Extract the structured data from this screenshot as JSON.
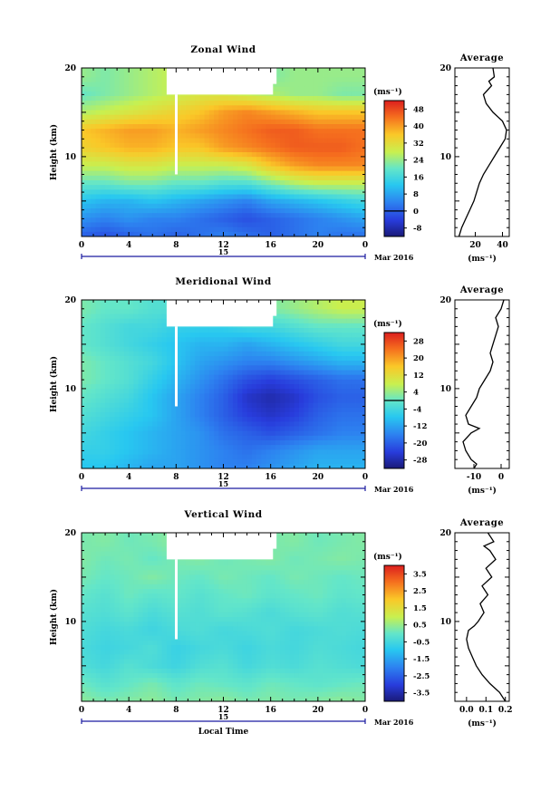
{
  "chart_data": [
    {
      "type": "heatmap",
      "title": "Zonal Wind",
      "ylabel": "Height (km)",
      "x_ticks": [
        "0",
        "4",
        "8",
        "12",
        "16",
        "20",
        "0"
      ],
      "y_ticks": [
        "20",
        "10"
      ],
      "xlim": [
        0,
        24
      ],
      "ylim": [
        1,
        20
      ],
      "date_label": "15",
      "date_suffix": "Mar 2016",
      "colorbar": {
        "unit": "(ms⁻¹)",
        "ticks": [
          "48",
          "40",
          "32",
          "24",
          "16",
          "8",
          "0",
          "-8"
        ],
        "range": [
          -12,
          52
        ],
        "zero_line": 0
      },
      "field": {
        "x": [
          0,
          2,
          4,
          6,
          8,
          10,
          12,
          14,
          16,
          18,
          20,
          22,
          24
        ],
        "y": [
          1,
          3,
          5,
          7,
          9,
          11,
          13,
          15,
          17,
          19
        ],
        "z": [
          [
            0,
            -2,
            0,
            2,
            0,
            2,
            4,
            2,
            0,
            2,
            4,
            2,
            2
          ],
          [
            6,
            4,
            6,
            4,
            4,
            2,
            0,
            -2,
            0,
            2,
            4,
            6,
            8
          ],
          [
            12,
            10,
            10,
            12,
            10,
            8,
            6,
            4,
            8,
            10,
            12,
            14,
            16
          ],
          [
            20,
            20,
            22,
            22,
            20,
            20,
            18,
            18,
            22,
            26,
            28,
            28,
            28
          ],
          [
            28,
            28,
            30,
            30,
            28,
            28,
            28,
            30,
            36,
            40,
            42,
            42,
            42
          ],
          [
            34,
            36,
            38,
            38,
            36,
            36,
            40,
            42,
            44,
            46,
            46,
            46,
            44
          ],
          [
            36,
            38,
            40,
            40,
            38,
            40,
            42,
            44,
            46,
            46,
            44,
            44,
            44
          ],
          [
            26,
            28,
            30,
            32,
            34,
            36,
            40,
            42,
            40,
            38,
            36,
            36,
            36
          ],
          [
            20,
            22,
            24,
            26,
            28,
            30,
            30,
            28,
            26,
            24,
            24,
            22,
            22
          ],
          [
            24,
            22,
            24,
            26,
            28,
            26,
            24,
            22,
            22,
            24,
            24,
            24,
            24
          ]
        ]
      },
      "average": {
        "title": "Average",
        "xlabel": "(ms⁻¹)",
        "x_ticks": [
          "20",
          "40"
        ],
        "xlim": [
          5,
          45
        ],
        "heights": [
          1,
          2,
          3,
          4,
          5,
          6,
          7,
          8,
          9,
          10,
          11,
          12,
          13,
          14,
          15,
          16,
          17,
          17.5,
          18,
          18.5,
          19,
          20
        ],
        "values": [
          8,
          10,
          13,
          16,
          19,
          21,
          23,
          26,
          30,
          34,
          38,
          42,
          43,
          40,
          33,
          28,
          26,
          29,
          32,
          30,
          34,
          33
        ]
      }
    },
    {
      "type": "heatmap",
      "title": "Meridional Wind",
      "ylabel": "Height (km)",
      "x_ticks": [
        "0",
        "4",
        "8",
        "12",
        "16",
        "20",
        "0"
      ],
      "y_ticks": [
        "20",
        "10"
      ],
      "xlim": [
        0,
        24
      ],
      "ylim": [
        1,
        20
      ],
      "date_label": "15",
      "date_suffix": "Mar 2016",
      "colorbar": {
        "unit": "(ms⁻¹)",
        "ticks": [
          "28",
          "20",
          "12",
          "4",
          "-4",
          "-12",
          "-20",
          "-28"
        ],
        "range": [
          -32,
          32
        ],
        "zero_line": 0
      },
      "field": {
        "x": [
          0,
          2,
          4,
          6,
          8,
          10,
          12,
          14,
          16,
          18,
          20,
          22,
          24
        ],
        "y": [
          1,
          3,
          5,
          7,
          9,
          11,
          13,
          15,
          17,
          19
        ],
        "z": [
          [
            -8,
            -8,
            -10,
            -12,
            -12,
            -14,
            -16,
            -16,
            -14,
            -12,
            -10,
            -10,
            -10
          ],
          [
            -6,
            -6,
            -8,
            -10,
            -12,
            -14,
            -16,
            -18,
            -16,
            -14,
            -12,
            -12,
            -12
          ],
          [
            -4,
            -6,
            -8,
            -10,
            -12,
            -14,
            -18,
            -20,
            -22,
            -20,
            -18,
            -16,
            -16
          ],
          [
            -2,
            -4,
            -6,
            -8,
            -12,
            -16,
            -20,
            -24,
            -26,
            -24,
            -20,
            -18,
            -18
          ],
          [
            0,
            -2,
            -4,
            -8,
            -12,
            -16,
            -20,
            -26,
            -28,
            -26,
            -22,
            -20,
            -20
          ],
          [
            2,
            0,
            -2,
            -6,
            -10,
            -14,
            -18,
            -22,
            -24,
            -22,
            -20,
            -18,
            -18
          ],
          [
            2,
            0,
            -2,
            -4,
            -8,
            -12,
            -14,
            -16,
            -16,
            -14,
            -12,
            -10,
            -10
          ],
          [
            0,
            -2,
            -4,
            -6,
            -8,
            -10,
            -10,
            -12,
            -10,
            -8,
            -6,
            -4,
            -4
          ],
          [
            0,
            -2,
            -4,
            -4,
            -6,
            -6,
            -6,
            -4,
            -4,
            -2,
            0,
            0,
            0
          ],
          [
            2,
            0,
            0,
            -2,
            -2,
            -2,
            -2,
            0,
            2,
            4,
            6,
            8,
            8
          ]
        ]
      },
      "average": {
        "title": "Average",
        "xlabel": "(ms⁻¹)",
        "x_ticks": [
          "-10",
          "0"
        ],
        "xlim": [
          -17,
          3
        ],
        "heights": [
          1,
          1.5,
          2,
          3,
          4,
          5,
          5.5,
          6,
          7,
          8,
          9,
          10,
          11,
          12,
          13,
          14,
          15,
          16,
          17,
          18,
          19,
          20
        ],
        "values": [
          -10,
          -9,
          -11,
          -13,
          -14,
          -11,
          -8,
          -12,
          -13,
          -11,
          -9,
          -8,
          -6,
          -4,
          -3,
          -4,
          -3,
          -2,
          -1,
          -2,
          0,
          1
        ]
      }
    },
    {
      "type": "heatmap",
      "title": "Vertical Wind",
      "ylabel": "Height (km)",
      "xlabel": "Local Time",
      "x_ticks": [
        "0",
        "4",
        "8",
        "12",
        "16",
        "20",
        "0"
      ],
      "y_ticks": [
        "20",
        "10"
      ],
      "xlim": [
        0,
        24
      ],
      "ylim": [
        1,
        20
      ],
      "date_label": "15",
      "date_suffix": "Mar 2016",
      "colorbar": {
        "unit": "(ms⁻¹)",
        "ticks": [
          "3.5",
          "2.5",
          "1.5",
          "0.5",
          "-0.5",
          "-1.5",
          "-2.5",
          "-3.5"
        ],
        "range": [
          -4,
          4
        ]
      },
      "field": {
        "x": [
          0,
          2,
          4,
          6,
          8,
          10,
          12,
          14,
          16,
          18,
          20,
          22,
          24
        ],
        "y": [
          1,
          3,
          5,
          7,
          9,
          11,
          13,
          15,
          17,
          19
        ],
        "z": [
          [
            0.4,
            0.2,
            0.3,
            0.4,
            0.2,
            0.3,
            0.4,
            0.2,
            0.3,
            0.2,
            0.3,
            0.4,
            0.3
          ],
          [
            0.1,
            -0.2,
            0.0,
            0.2,
            -0.1,
            0.1,
            0.0,
            -0.1,
            0.1,
            0.0,
            -0.1,
            0.0,
            0.1
          ],
          [
            -0.3,
            -0.5,
            -0.2,
            -0.4,
            -0.6,
            -0.3,
            -0.2,
            -0.5,
            -0.3,
            -0.4,
            -0.2,
            -0.3,
            -0.4
          ],
          [
            -0.4,
            -0.6,
            -0.5,
            -0.3,
            -0.7,
            -0.5,
            -0.4,
            -0.6,
            -0.4,
            -0.5,
            -0.3,
            -0.4,
            -0.5
          ],
          [
            -0.3,
            -0.5,
            -0.4,
            -0.6,
            -0.4,
            -0.3,
            -0.5,
            -0.4,
            -0.3,
            -0.5,
            -0.4,
            -0.3,
            -0.4
          ],
          [
            -0.2,
            -0.3,
            -0.1,
            -0.4,
            -0.2,
            -0.3,
            -0.1,
            -0.2,
            -0.4,
            -0.2,
            -0.1,
            -0.3,
            -0.2
          ],
          [
            0.0,
            -0.2,
            0.1,
            -0.1,
            0.0,
            -0.2,
            0.0,
            0.1,
            -0.1,
            0.0,
            0.1,
            -0.1,
            0.0
          ],
          [
            0.2,
            0.0,
            0.1,
            0.3,
            0.1,
            0.0,
            0.2,
            0.1,
            0.0,
            0.2,
            0.1,
            0.0,
            0.1
          ],
          [
            0.3,
            0.1,
            0.2,
            0.0,
            0.2,
            0.3,
            0.1,
            0.2,
            0.3,
            0.1,
            0.2,
            0.3,
            0.2
          ],
          [
            0.2,
            0.3,
            0.1,
            0.2,
            0.4,
            0.2,
            0.3,
            0.1,
            0.2,
            0.3,
            0.1,
            0.2,
            0.3
          ]
        ]
      },
      "average": {
        "title": "Average",
        "xlabel": "(ms⁻¹)",
        "x_ticks": [
          "0.0",
          "0.1",
          "0.2"
        ],
        "xlim": [
          -0.06,
          0.22
        ],
        "heights": [
          1,
          2,
          3,
          4,
          5,
          6,
          7,
          8,
          9,
          9.5,
          10,
          11,
          12,
          13,
          14,
          15,
          16,
          17,
          18,
          18.5,
          19,
          20
        ],
        "values": [
          0.2,
          0.17,
          0.12,
          0.08,
          0.05,
          0.03,
          0.01,
          0.0,
          0.01,
          0.04,
          0.06,
          0.09,
          0.07,
          0.11,
          0.08,
          0.13,
          0.1,
          0.15,
          0.12,
          0.09,
          0.14,
          0.11
        ]
      }
    }
  ]
}
